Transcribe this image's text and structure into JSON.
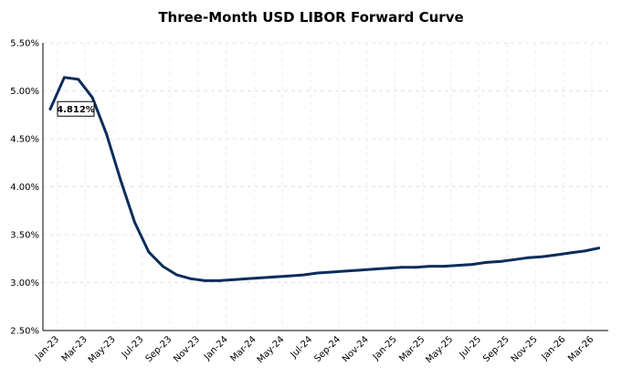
{
  "chart_data": {
    "type": "line",
    "title": "Three-Month USD LIBOR Forward Curve",
    "xlabel": "",
    "ylabel": "",
    "ylim": [
      2.5,
      5.5
    ],
    "y_ticks": [
      "2.50%",
      "3.00%",
      "3.50%",
      "4.00%",
      "4.50%",
      "5.00%",
      "5.50%"
    ],
    "y_tick_values": [
      2.5,
      3.0,
      3.5,
      4.0,
      4.5,
      5.0,
      5.5
    ],
    "x_ticks": [
      "Jan-23",
      "Mar-23",
      "May-23",
      "Jul-23",
      "Sep-23",
      "Nov-23",
      "Jan-24",
      "Mar-24",
      "May-24",
      "Jul-24",
      "Sep-24",
      "Nov-24",
      "Jan-25",
      "Mar-25",
      "May-25",
      "Jul-25",
      "Sep-25",
      "Nov-25",
      "Jan-26",
      "Mar-26"
    ],
    "grid": true,
    "line_color": "#0b2d5b",
    "series": [
      {
        "x": [
          "Jan-23",
          "Feb-23",
          "Mar-23",
          "Apr-23",
          "May-23",
          "Jun-23",
          "Jul-23",
          "Aug-23",
          "Sep-23",
          "Oct-23",
          "Nov-23",
          "Dec-23",
          "Jan-24",
          "Feb-24",
          "Mar-24",
          "Apr-24",
          "May-24",
          "Jun-24",
          "Jul-24",
          "Aug-24",
          "Sep-24",
          "Oct-24",
          "Nov-24",
          "Dec-24",
          "Jan-25",
          "Feb-25",
          "Mar-25",
          "Apr-25",
          "May-25",
          "Jun-25",
          "Jul-25",
          "Aug-25",
          "Sep-25",
          "Oct-25",
          "Nov-25",
          "Dec-25",
          "Jan-26",
          "Feb-26",
          "Mar-26",
          "Apr-26"
        ],
        "values": [
          4.81,
          5.14,
          5.12,
          4.93,
          4.55,
          4.07,
          3.63,
          3.32,
          3.17,
          3.08,
          3.04,
          3.02,
          3.02,
          3.03,
          3.04,
          3.05,
          3.06,
          3.07,
          3.08,
          3.1,
          3.11,
          3.12,
          3.13,
          3.14,
          3.15,
          3.16,
          3.16,
          3.17,
          3.17,
          3.18,
          3.19,
          3.21,
          3.22,
          3.24,
          3.26,
          3.27,
          3.29,
          3.31,
          3.33,
          3.36
        ]
      }
    ],
    "annotation": {
      "text": "4.812%",
      "x": "Jan-23",
      "y": 4.812
    }
  }
}
